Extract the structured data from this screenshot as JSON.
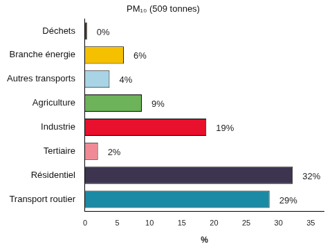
{
  "chart_data": {
    "type": "bar",
    "title": "PM₁₀ (509 tonnes)",
    "orientation": "horizontal",
    "categories": [
      "Déchets",
      "Branche énergie",
      "Autres transports",
      "Agriculture",
      "Industrie",
      "Tertiaire",
      "Résidentiel",
      "Transport routier"
    ],
    "values": [
      0.3,
      6,
      3.8,
      8.8,
      18.8,
      2,
      32.2,
      28.6
    ],
    "value_labels": [
      "0%",
      "6%",
      "4%",
      "9%",
      "19%",
      "2%",
      "32%",
      "29%"
    ],
    "colors": [
      "#4a2f1e",
      "#f5c000",
      "#a8d4e6",
      "#6db35a",
      "#e8102c",
      "#f08a96",
      "#3d3450",
      "#1b8aa5"
    ],
    "x_label": "%",
    "xlim": [
      0,
      37
    ],
    "xticks": [
      0,
      5,
      10,
      15,
      20,
      25,
      30,
      35
    ],
    "grid": false,
    "data_labels": true
  }
}
